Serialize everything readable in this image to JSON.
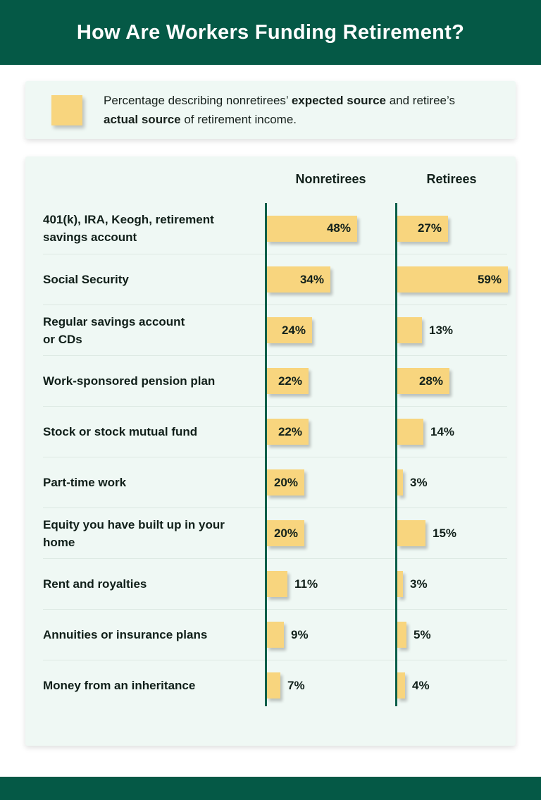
{
  "header": {
    "title": "How Are Workers Funding Retirement?"
  },
  "legend": {
    "swatch_color": "#f8d57e",
    "part1": "Percentage describing nonretirees’ ",
    "bold1": "expected source",
    "part2": " and retiree’s ",
    "bold2": "actual source",
    "part3": " of retirement income."
  },
  "chart_data": {
    "type": "bar",
    "orientation": "horizontal",
    "columns": [
      "Nonretirees",
      "Retirees"
    ],
    "categories": [
      "401(k), IRA, Keogh, retirement\nsavings account",
      "Social Security",
      "Regular savings account\nor CDs",
      "Work-sponsored pension plan",
      "Stock or stock mutual fund",
      "Part-time work",
      "Equity you have built up in your\nhome",
      "Rent and royalties",
      "Annuities or insurance plans",
      "Money from an inheritance"
    ],
    "series": [
      {
        "name": "Nonretirees",
        "values": [
          48,
          34,
          24,
          22,
          22,
          20,
          20,
          11,
          9,
          7
        ]
      },
      {
        "name": "Retirees",
        "values": [
          27,
          59,
          13,
          28,
          14,
          3,
          15,
          3,
          5,
          4
        ]
      }
    ],
    "unit": "%",
    "xlim": [
      0,
      60
    ],
    "label_inside_threshold": 20,
    "bar_color": "#f8d57e",
    "axis_color": "#0b5f49",
    "grid": false,
    "legend_position": "top"
  },
  "colors": {
    "band_green": "#055946",
    "card_background": "#eff8f4",
    "separator": "#dde9e3",
    "text": "#12211b"
  }
}
